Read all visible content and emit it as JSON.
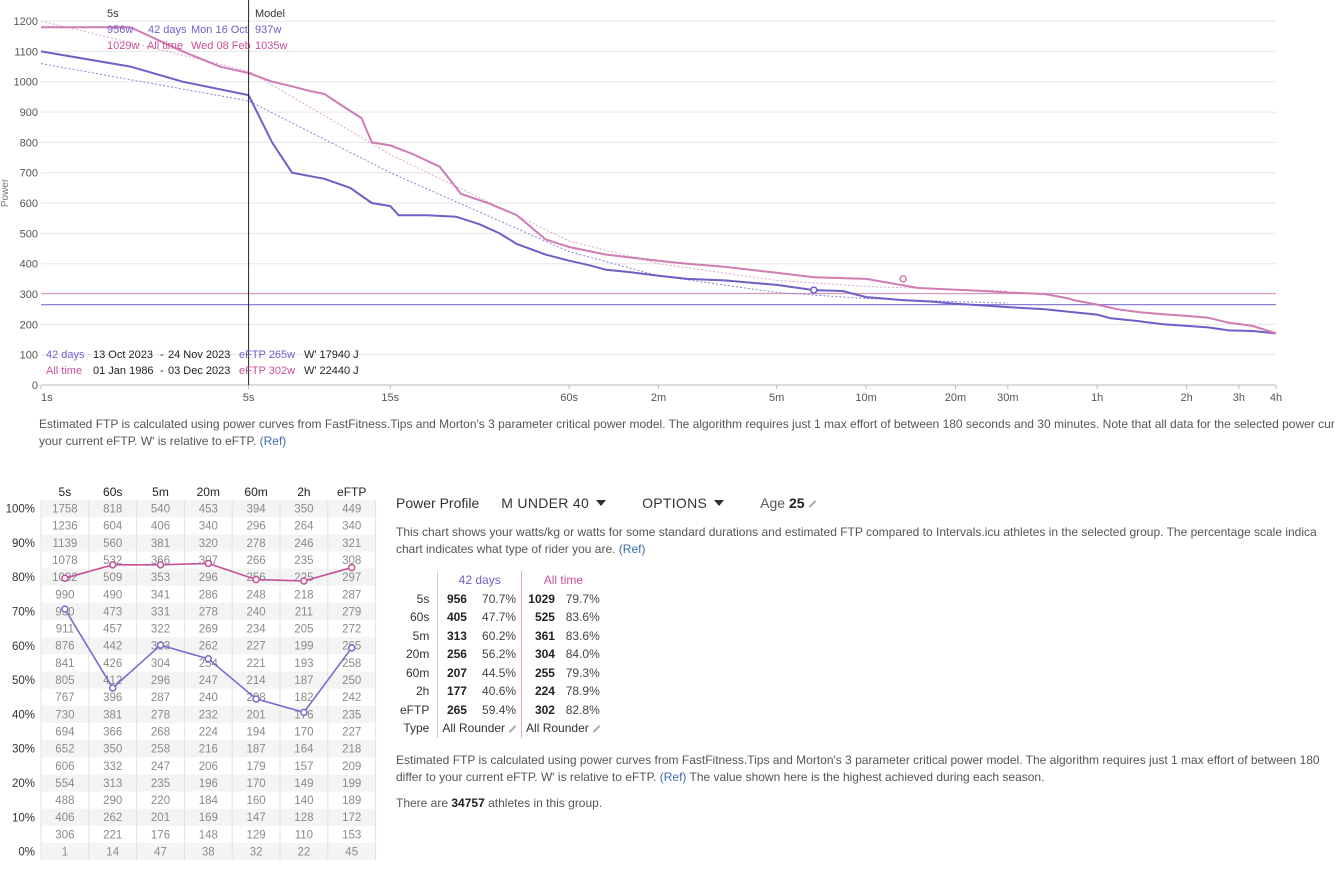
{
  "chart_data": [
    {
      "type": "line",
      "ylabel": "Power",
      "x_scale": "log",
      "x_ticks": [
        "1s",
        "5s",
        "15s",
        "60s",
        "2m",
        "5m",
        "10m",
        "20m",
        "30m",
        "1h",
        "2h",
        "3h",
        "4h"
      ],
      "x_tick_seconds": [
        1,
        5,
        15,
        60,
        120,
        300,
        600,
        1200,
        1800,
        3600,
        7200,
        10800,
        14400
      ],
      "y_ticks": [
        0,
        100,
        200,
        300,
        400,
        500,
        600,
        700,
        800,
        900,
        1000,
        1100,
        1200
      ],
      "ylim": [
        0,
        1230
      ],
      "series": [
        {
          "name": "42 days",
          "color": "#6f5fc7",
          "points": [
            [
              1,
              1100
            ],
            [
              2,
              1050
            ],
            [
              3,
              1000
            ],
            [
              5,
              956
            ],
            [
              6,
              800
            ],
            [
              7,
              700
            ],
            [
              9,
              680
            ],
            [
              11,
              650
            ],
            [
              13,
              600
            ],
            [
              14,
              595
            ],
            [
              15,
              590
            ],
            [
              16,
              560
            ],
            [
              20,
              560
            ],
            [
              25,
              555
            ],
            [
              30,
              530
            ],
            [
              35,
              500
            ],
            [
              40,
              465
            ],
            [
              50,
              430
            ],
            [
              60,
              410
            ],
            [
              70,
              395
            ],
            [
              80,
              380
            ],
            [
              90,
              375
            ],
            [
              100,
              370
            ],
            [
              120,
              360
            ],
            [
              150,
              350
            ],
            [
              200,
              345
            ],
            [
              300,
              330
            ],
            [
              400,
              313
            ],
            [
              500,
              310
            ],
            [
              600,
              290
            ],
            [
              800,
              280
            ],
            [
              1000,
              275
            ],
            [
              1200,
              268
            ],
            [
              1500,
              262
            ],
            [
              1800,
              257
            ],
            [
              2400,
              250
            ],
            [
              3000,
              240
            ],
            [
              3600,
              232
            ],
            [
              4000,
              220
            ],
            [
              5000,
              210
            ],
            [
              6000,
              200
            ],
            [
              7200,
              195
            ],
            [
              8500,
              190
            ],
            [
              10000,
              180
            ],
            [
              12000,
              178
            ],
            [
              14400,
              170
            ]
          ]
        },
        {
          "name": "All time",
          "color": "#d07cb4",
          "points": [
            [
              1,
              1180
            ],
            [
              2,
              1180
            ],
            [
              3,
              1100
            ],
            [
              4,
              1050
            ],
            [
              5,
              1029
            ],
            [
              6,
              1000
            ],
            [
              7,
              985
            ],
            [
              8,
              970
            ],
            [
              9,
              960
            ],
            [
              10,
              930
            ],
            [
              12,
              880
            ],
            [
              13,
              800
            ],
            [
              15,
              790
            ],
            [
              18,
              760
            ],
            [
              22,
              720
            ],
            [
              26,
              630
            ],
            [
              32,
              600
            ],
            [
              40,
              560
            ],
            [
              50,
              480
            ],
            [
              60,
              455
            ],
            [
              80,
              430
            ],
            [
              120,
              410
            ],
            [
              150,
              400
            ],
            [
              200,
              390
            ],
            [
              300,
              370
            ],
            [
              400,
              355
            ],
            [
              600,
              350
            ],
            [
              900,
              320
            ],
            [
              1500,
              310
            ],
            [
              1800,
              305
            ],
            [
              2400,
              300
            ],
            [
              2900,
              285
            ],
            [
              3000,
              280
            ],
            [
              3600,
              265
            ],
            [
              4200,
              250
            ],
            [
              5000,
              240
            ],
            [
              6000,
              233
            ],
            [
              7200,
              228
            ],
            [
              8500,
              222
            ],
            [
              10000,
              205
            ],
            [
              12000,
              195
            ],
            [
              14400,
              170
            ]
          ]
        }
      ],
      "model_lines": [
        {
          "name": "42 days model",
          "color": "#8d80d6",
          "points": [
            [
              1,
              1060
            ],
            [
              5,
              937
            ],
            [
              15,
              700
            ],
            [
              60,
              440
            ],
            [
              120,
              360
            ],
            [
              300,
              305
            ],
            [
              600,
              285
            ],
            [
              1200,
              275
            ],
            [
              1800,
              270
            ]
          ]
        },
        {
          "name": "All time model",
          "color": "#dca6c8",
          "points": [
            [
              1,
              1200
            ],
            [
              5,
              1035
            ],
            [
              15,
              760
            ],
            [
              60,
              475
            ],
            [
              120,
              400
            ],
            [
              300,
              345
            ],
            [
              600,
              325
            ],
            [
              1200,
              315
            ],
            [
              1800,
              310
            ]
          ]
        }
      ],
      "eftp_lines": [
        {
          "name": "42 days",
          "value": 265,
          "color": "#7a6bcc"
        },
        {
          "name": "All time",
          "value": 302,
          "color": "#d48dbd"
        }
      ],
      "markers": [
        {
          "series": "42 days",
          "x": 400,
          "y": 313
        },
        {
          "series": "All time",
          "x": 800,
          "y": 350
        }
      ],
      "cursor": {
        "label": "5s",
        "model_header": "Model",
        "rows": [
          {
            "watts": "956w",
            "period": "42 days",
            "date": "Mon 16 Oct",
            "model": "937w",
            "color": "#6f5fc7"
          },
          {
            "watts": "1029w",
            "period": "All time",
            "date": "Wed 08 Feb",
            "model": "1035w",
            "color": "#c8519a"
          }
        ]
      },
      "legend": [
        {
          "period": "42 days",
          "range_start": "13 Oct 2023",
          "range_end": "24 Nov 2023",
          "eftp": "eFTP 265w",
          "wprime": "W' 17940 J",
          "color": "#6f5fc7"
        },
        {
          "period": "All time",
          "range_start": "01 Jan 1986",
          "range_end": "03 Dec 2023",
          "eftp": "eFTP 302w",
          "wprime": "W' 22440 J",
          "color": "#c8519a"
        }
      ]
    },
    {
      "type": "line",
      "columns": [
        "5s",
        "60s",
        "5m",
        "20m",
        "60m",
        "2h",
        "eFTP"
      ],
      "percentiles": [
        "100%",
        "90%",
        "80%",
        "70%",
        "60%",
        "50%",
        "40%",
        "30%",
        "20%",
        "10%",
        "0%"
      ],
      "rows": [
        [
          "1758",
          "818",
          "540",
          "453",
          "394",
          "350",
          "449"
        ],
        [
          "1236",
          "604",
          "406",
          "340",
          "296",
          "264",
          "340"
        ],
        [
          "1139",
          "560",
          "381",
          "320",
          "278",
          "246",
          "321"
        ],
        [
          "1078",
          "532",
          "366",
          "307",
          "266",
          "235",
          "308"
        ],
        [
          "1032",
          "509",
          "353",
          "296",
          "256",
          "225",
          "297"
        ],
        [
          "990",
          "490",
          "341",
          "286",
          "248",
          "218",
          "287"
        ],
        [
          "950",
          "473",
          "331",
          "278",
          "240",
          "211",
          "279"
        ],
        [
          "911",
          "457",
          "322",
          "269",
          "234",
          "205",
          "272"
        ],
        [
          "876",
          "442",
          "313",
          "262",
          "227",
          "199",
          "265"
        ],
        [
          "841",
          "426",
          "304",
          "254",
          "221",
          "193",
          "258"
        ],
        [
          "805",
          "412",
          "296",
          "247",
          "214",
          "187",
          "250"
        ],
        [
          "767",
          "396",
          "287",
          "240",
          "208",
          "182",
          "242"
        ],
        [
          "730",
          "381",
          "278",
          "232",
          "201",
          "176",
          "235"
        ],
        [
          "694",
          "366",
          "268",
          "224",
          "194",
          "170",
          "227"
        ],
        [
          "652",
          "350",
          "258",
          "216",
          "187",
          "164",
          "218"
        ],
        [
          "606",
          "332",
          "247",
          "206",
          "179",
          "157",
          "209"
        ],
        [
          "554",
          "313",
          "235",
          "196",
          "170",
          "149",
          "199"
        ],
        [
          "488",
          "290",
          "220",
          "184",
          "160",
          "140",
          "189"
        ],
        [
          "406",
          "262",
          "201",
          "169",
          "147",
          "128",
          "172"
        ],
        [
          "306",
          "221",
          "176",
          "148",
          "129",
          "110",
          "153"
        ],
        [
          "1",
          "14",
          "47",
          "38",
          "32",
          "22",
          "45"
        ]
      ],
      "series": [
        {
          "name": "42 days",
          "color": "#7a6bcc",
          "values": [
            70.7,
            47.7,
            60.2,
            56.2,
            44.5,
            40.6,
            59.4
          ]
        },
        {
          "name": "All time",
          "color": "#c8519a",
          "values": [
            79.7,
            83.6,
            83.6,
            84.0,
            79.3,
            78.9,
            82.8
          ]
        }
      ]
    }
  ],
  "chart_note": {
    "text": "Estimated FTP is calculated using power curves from FastFitness.Tips and Morton's 3 parameter critical power model. The algorithm requires just 1 max effort of between 180 seconds and 30 minutes. Note that all data for the selected power cur",
    "text2": "your current eFTP. W' is relative to eFTP.",
    "ref": "(Ref)"
  },
  "profile": {
    "label": "Power Profile",
    "group": "M UNDER 40",
    "options": "OPTIONS",
    "age_label": "Age",
    "age_value": "25",
    "desc1": "This chart shows your watts/kg or watts for some standard durations and estimated FTP compared to Intervals.icu athletes in the selected group. The percentage scale indica",
    "desc2": "chart indicates what type of rider you are.",
    "desc_ref": "(Ref)",
    "note1": "Estimated FTP is calculated using power curves from FastFitness.Tips and Morton's 3 parameter critical power model. The algorithm requires just 1 max effort of between 180",
    "note2": "differ to your current eFTP. W' is relative to eFTP.",
    "note_ref": "(Ref)",
    "note3": "The value shown here is the highest achieved during each season.",
    "count_prefix": "There are",
    "count": "34757",
    "count_suffix": "athletes in this group."
  },
  "summary": {
    "headers": [
      "42 days",
      "All time"
    ],
    "rows": [
      {
        "label": "5s",
        "w42": "956",
        "p42": "70.7%",
        "wall": "1029",
        "pall": "79.7%"
      },
      {
        "label": "60s",
        "w42": "405",
        "p42": "47.7%",
        "wall": "525",
        "pall": "83.6%"
      },
      {
        "label": "5m",
        "w42": "313",
        "p42": "60.2%",
        "wall": "361",
        "pall": "83.6%"
      },
      {
        "label": "20m",
        "w42": "256",
        "p42": "56.2%",
        "wall": "304",
        "pall": "84.0%"
      },
      {
        "label": "60m",
        "w42": "207",
        "p42": "44.5%",
        "wall": "255",
        "pall": "79.3%"
      },
      {
        "label": "2h",
        "w42": "177",
        "p42": "40.6%",
        "wall": "224",
        "pall": "78.9%"
      },
      {
        "label": "eFTP",
        "w42": "265",
        "p42": "59.4%",
        "wall": "302",
        "pall": "82.8%"
      }
    ],
    "type_label": "Type",
    "type42": "All Rounder",
    "typeall": "All Rounder"
  }
}
